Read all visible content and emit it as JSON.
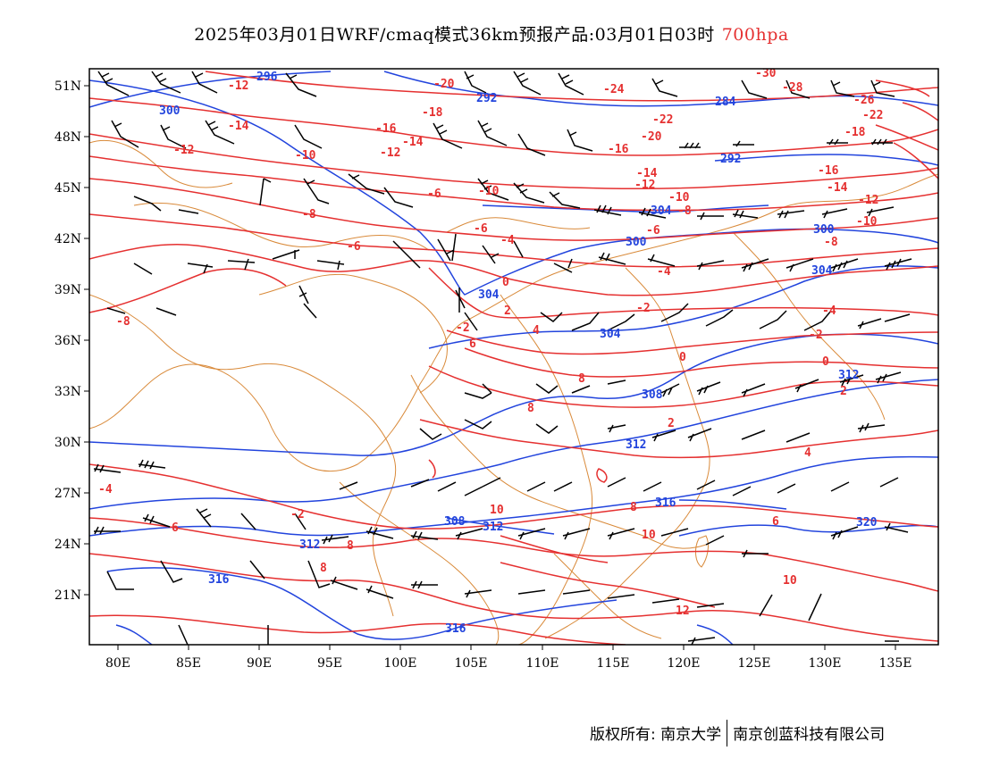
{
  "title": {
    "main": "2025年03月01日WRF/cmaq模式36km预报产品:03月01日03时",
    "level": "700hpa",
    "level_color": "#e53030"
  },
  "map": {
    "lon_ticks": [
      "80E",
      "85E",
      "90E",
      "95E",
      "100E",
      "105E",
      "110E",
      "115E",
      "120E",
      "125E",
      "130E",
      "135E"
    ],
    "lat_ticks": [
      "51N",
      "48N",
      "45N",
      "42N",
      "39N",
      "36N",
      "33N",
      "30N",
      "27N",
      "24N",
      "21N"
    ],
    "lon_range": [
      78,
      138
    ],
    "lat_range": [
      17.5,
      52
    ],
    "colors": {
      "temperature_contour": "#e53030",
      "height_contour": "#2244dd",
      "boundary": "#d98a3a",
      "wind_barb": "#000000"
    },
    "temperature_labels": [
      "-30",
      "-28",
      "-26",
      "-24",
      "-22",
      "-22",
      "-20",
      "-20",
      "-18",
      "-18",
      "-16",
      "-16",
      "-16",
      "-14",
      "-14",
      "-14",
      "-14",
      "-12",
      "-12",
      "-12",
      "-12",
      "-12",
      "-10",
      "-10",
      "-10",
      "-10",
      "-8",
      "-8",
      "-8",
      "-8",
      "-6",
      "-6",
      "-6",
      "-6",
      "-4",
      "-4",
      "-4",
      "-4",
      "-2",
      "-2",
      "-2",
      "-2",
      "0",
      "0",
      "0",
      "2",
      "2",
      "2",
      "4",
      "4",
      "6",
      "6",
      "6",
      "8",
      "8",
      "8",
      "8",
      "8",
      "10",
      "10",
      "10",
      "12"
    ],
    "height_labels": [
      "296",
      "300",
      "292",
      "284",
      "292",
      "304",
      "300",
      "300",
      "304",
      "304",
      "312",
      "308",
      "312",
      "304",
      "316",
      "308",
      "312",
      "320",
      "312",
      "316",
      "316"
    ],
    "wind_barbs": "present"
  },
  "footer": {
    "left": "版权所有: 南京大学",
    "right": "南京创蓝科技有限公司"
  }
}
